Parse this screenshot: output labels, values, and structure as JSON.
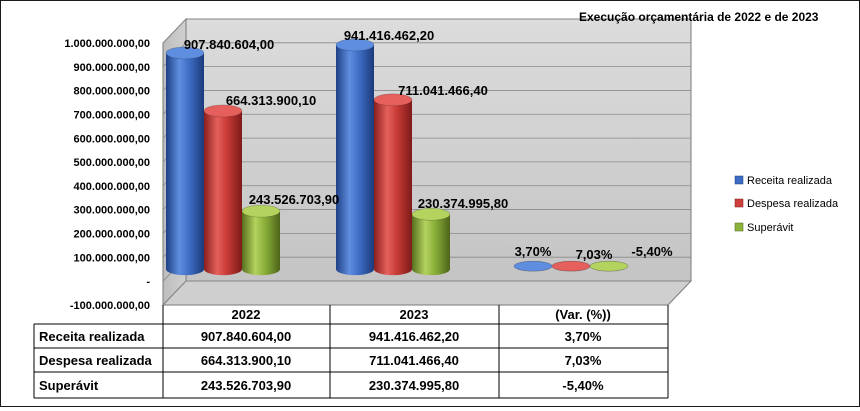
{
  "chart_data": {
    "type": "bar",
    "title": "Execução orçamentária de 2022  e de 2023",
    "categories": [
      "2022",
      "2023",
      "(Var. (%))"
    ],
    "series": [
      {
        "name": "Receita realizada",
        "values": [
          907840604.0,
          941416462.2,
          3.7
        ],
        "labels": [
          "907.840.604,00",
          "941.416.462,20",
          "3,70%"
        ],
        "color": "#3d6cc4"
      },
      {
        "name": "Despesa realizada",
        "values": [
          664313900.1,
          711041466.4,
          7.03
        ],
        "labels": [
          "664.313.900,10",
          "711.041.466,40",
          "7,03%"
        ],
        "color": "#cf3f3c"
      },
      {
        "name": "Superávit",
        "values": [
          243526703.9,
          230374995.8,
          -5.4
        ],
        "labels": [
          "243.526.703,90",
          "230.374.995,80",
          "-5,40%"
        ],
        "color": "#8db33d"
      }
    ],
    "y_ticks": [
      "1.000.000.000,00",
      "900.000.000,00",
      "800.000.000,00",
      "700.000.000,00",
      "600.000.000,00",
      "500.000.000,00",
      "400.000.000,00",
      "300.000.000,00",
      "200.000.000,00",
      "100.000.000,00",
      "-",
      "-100.000.000,00"
    ],
    "y_tick_values": [
      1000000000,
      900000000,
      800000000,
      700000000,
      600000000,
      500000000,
      400000000,
      300000000,
      200000000,
      100000000,
      0,
      -100000000
    ],
    "ylim": [
      -100000000,
      1000000000
    ],
    "grid": true,
    "legend_position": "right",
    "table": {
      "header": [
        "2022",
        "2023",
        "(Var. (%))"
      ],
      "rows": [
        {
          "label": "Receita realizada",
          "cells": [
            "907.840.604,00",
            "941.416.462,20",
            "3,70%"
          ]
        },
        {
          "label": "Despesa realizada",
          "cells": [
            "664.313.900,10",
            "711.041.466,40",
            "7,03%"
          ]
        },
        {
          "label": "Superávit",
          "cells": [
            "243.526.703,90",
            "230.374.995,80",
            "-5,40%"
          ]
        }
      ]
    }
  }
}
